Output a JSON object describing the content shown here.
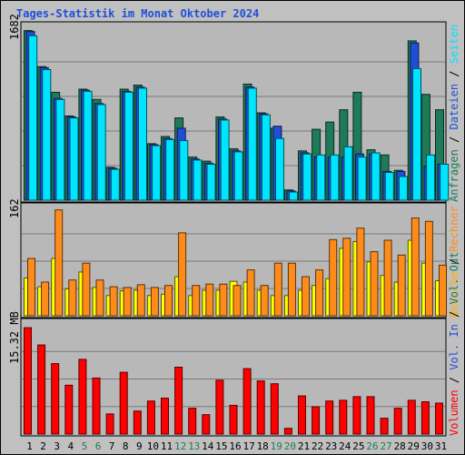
{
  "chart_data": [
    {
      "type": "bar",
      "title": "Tages-Statistik im Monat Oktober 2024",
      "y_max_label": "1682",
      "ylim": [
        0,
        1682
      ],
      "categories": [
        "1",
        "2",
        "3",
        "4",
        "5",
        "6",
        "7",
        "8",
        "9",
        "10",
        "11",
        "12",
        "13",
        "14",
        "15",
        "16",
        "17",
        "18",
        "19",
        "20",
        "21",
        "22",
        "23",
        "24",
        "25",
        "26",
        "27",
        "28",
        "29",
        "30",
        "31"
      ],
      "weekend_days": [
        "5",
        "6",
        "12",
        "13",
        "19",
        "20",
        "26",
        "27"
      ],
      "series": [
        {
          "name": "Anfragen",
          "color": "#1f7a5a",
          "values": [
            1650,
            1300,
            1050,
            820,
            1080,
            980,
            320,
            1080,
            1120,
            550,
            620,
            800,
            420,
            380,
            810,
            500,
            1130,
            850,
            700,
            100,
            480,
            690,
            760,
            880,
            1050,
            490,
            440,
            290,
            1550,
            1030,
            880
          ]
        },
        {
          "name": "Dateien",
          "color": "#1f4fd8",
          "values": [
            1640,
            1290,
            990,
            810,
            1070,
            940,
            310,
            1060,
            1100,
            540,
            600,
            700,
            400,
            360,
            790,
            480,
            1100,
            840,
            720,
            90,
            460,
            420,
            420,
            420,
            450,
            450,
            280,
            280,
            1530,
            330,
            350
          ]
        },
        {
          "name": "Seiten",
          "color": "#00e5ff",
          "values": [
            1600,
            1270,
            980,
            800,
            1060,
            930,
            300,
            1050,
            1090,
            530,
            590,
            580,
            390,
            350,
            780,
            470,
            1090,
            830,
            600,
            80,
            450,
            440,
            440,
            520,
            420,
            460,
            270,
            230,
            1280,
            440,
            350
          ]
        }
      ],
      "axis_labels": [
        {
          "text": "Anfragen",
          "color": "#1f7a5a"
        },
        {
          "text": "/",
          "color": "#000000"
        },
        {
          "text": "Dateien",
          "color": "#1f4fd8"
        },
        {
          "text": "/",
          "color": "#000000"
        },
        {
          "text": "Seiten",
          "color": "#00e5ff"
        }
      ]
    },
    {
      "type": "bar",
      "y_max_label": "162",
      "ylim": [
        0,
        162
      ],
      "series": [
        {
          "name": "Besuche",
          "color": "#ffff00",
          "values": [
            56,
            43,
            85,
            40,
            65,
            42,
            30,
            37,
            38,
            30,
            32,
            58,
            30,
            38,
            38,
            51,
            50,
            38,
            30,
            30,
            38,
            45,
            55,
            100,
            110,
            80,
            60,
            50,
            112,
            78,
            52
          ]
        },
        {
          "name": "Rechner",
          "color": "#ff8c1a",
          "values": [
            85,
            50,
            157,
            53,
            78,
            53,
            43,
            42,
            46,
            42,
            45,
            123,
            45,
            47,
            47,
            45,
            68,
            45,
            78,
            78,
            58,
            68,
            113,
            115,
            130,
            95,
            112,
            90,
            145,
            140,
            75
          ]
        }
      ],
      "axis_labels": [
        {
          "text": "Besuche",
          "color": "#ffb000"
        },
        {
          "text": "/",
          "color": "#000000"
        },
        {
          "text": "Rechner",
          "color": "#ff8c1a"
        }
      ]
    },
    {
      "type": "bar",
      "y_max_label": "15.32 MB",
      "ylim": [
        0,
        15.32
      ],
      "series": [
        {
          "name": "Volumen",
          "color": "#ff0000",
          "values": [
            14.8,
            12.4,
            9.8,
            6.8,
            10.4,
            7.8,
            2.8,
            8.6,
            3.2,
            4.6,
            5.0,
            9.3,
            3.6,
            2.7,
            7.5,
            4.0,
            9.1,
            7.4,
            7.0,
            0.8,
            5.3,
            3.8,
            4.6,
            4.7,
            5.2,
            5.2,
            2.2,
            3.6,
            4.7,
            4.5,
            4.3
          ]
        }
      ],
      "axis_labels": [
        {
          "text": "Volumen",
          "color": "#ff0000"
        },
        {
          "text": "/",
          "color": "#000000"
        },
        {
          "text": "Vol. In",
          "color": "#1f4fd8"
        },
        {
          "text": "/",
          "color": "#000000"
        },
        {
          "text": "Vol. Out",
          "color": "#1f7a5a"
        }
      ]
    }
  ]
}
